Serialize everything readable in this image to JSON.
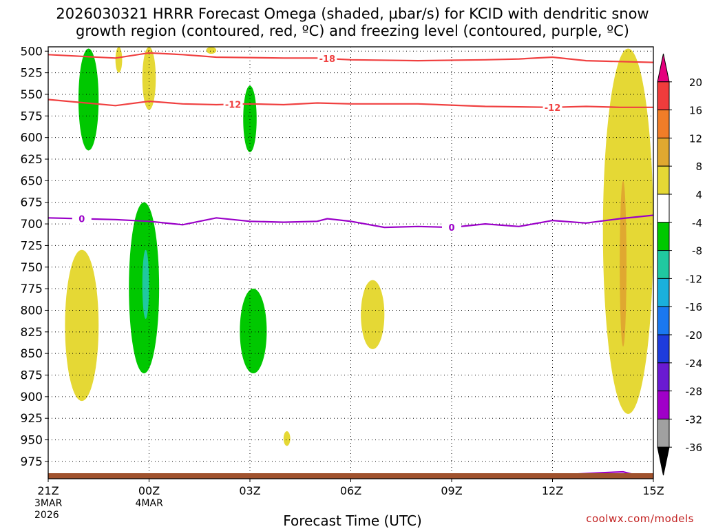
{
  "title": {
    "line1": "2026030321 HRRR Forecast Omega (shaded, µbar/s) for KCID with dendritic snow",
    "line2": "growth region (contoured, red, ºC) and freezing level (contoured, purple, ºC)"
  },
  "credit": "coolwx.com/models",
  "chart_data": {
    "type": "heatmap",
    "title": "2026030321 HRRR Forecast Omega (shaded, µbar/s) for KCID with dendritic snow growth region (contoured, red, ºC) and freezing level (contoured, purple, ºC)",
    "xlabel": "Forecast Time (UTC)",
    "ylabel": "",
    "x_range_hours": [
      0,
      18
    ],
    "y_range_hpa": [
      495,
      995
    ],
    "y_ticks": [
      "500",
      "525",
      "550",
      "575",
      "600",
      "625",
      "650",
      "675",
      "700",
      "725",
      "750",
      "775",
      "800",
      "825",
      "850",
      "875",
      "900",
      "925",
      "950",
      "975"
    ],
    "x_ticks": [
      {
        "hour": 0,
        "label": "21Z",
        "sub1": "3MAR",
        "sub2": "2026"
      },
      {
        "hour": 3,
        "label": "00Z",
        "sub1": "4MAR",
        "sub2": ""
      },
      {
        "hour": 6,
        "label": "03Z",
        "sub1": "",
        "sub2": ""
      },
      {
        "hour": 9,
        "label": "06Z",
        "sub1": "",
        "sub2": ""
      },
      {
        "hour": 12,
        "label": "09Z",
        "sub1": "",
        "sub2": ""
      },
      {
        "hour": 15,
        "label": "12Z",
        "sub1": "",
        "sub2": ""
      },
      {
        "hour": 18,
        "label": "15Z",
        "sub1": "",
        "sub2": ""
      }
    ],
    "colorbar": {
      "labels": [
        "20",
        "16",
        "12",
        "8",
        "4",
        "-4",
        "-8",
        "-12",
        "-16",
        "-20",
        "-24",
        "-28",
        "-32",
        "-36"
      ],
      "colors": [
        "#e5007e",
        "#f03c3c",
        "#f07d28",
        "#e0a830",
        "#e5d835",
        "#ffffff",
        "#00c800",
        "#20c8a0",
        "#1ab0dc",
        "#1a78f0",
        "#1e3cdc",
        "#6a1ad2",
        "#a000c8",
        "#a0a0a0",
        "#000000"
      ]
    },
    "shaded_regions": [
      {
        "name": "green-left-upper",
        "level": "-8 to -4",
        "hours": [
          0.9,
          1.5
        ],
        "hpa": [
          497,
          615
        ]
      },
      {
        "name": "yellow-top-small",
        "level": "4 to 8",
        "hours": [
          2.0,
          2.2
        ],
        "hpa": [
          495,
          525
        ]
      },
      {
        "name": "yellow-upper-00z",
        "level": "4 to 8",
        "hours": [
          2.8,
          3.2
        ],
        "hpa": [
          495,
          568
        ]
      },
      {
        "name": "yellow-top-right",
        "level": "4 to 8",
        "hours": [
          4.7,
          5.0
        ],
        "hpa": [
          495,
          503
        ]
      },
      {
        "name": "green-03z-upper",
        "level": "-8 to -4",
        "hours": [
          5.8,
          6.2
        ],
        "hpa": [
          540,
          617
        ]
      },
      {
        "name": "yellow-left-lower",
        "level": "4 to 8",
        "hours": [
          0.5,
          1.5
        ],
        "hpa": [
          730,
          905
        ]
      },
      {
        "name": "green-01z",
        "level": "-8 to -4",
        "hours": [
          2.4,
          3.3
        ],
        "hpa": [
          675,
          873
        ]
      },
      {
        "name": "teal-01z",
        "level": "-12 to -8",
        "hours": [
          2.8,
          3.0
        ],
        "hpa": [
          730,
          810
        ]
      },
      {
        "name": "green-03z-lower",
        "level": "-8 to -4",
        "hours": [
          5.7,
          6.5
        ],
        "hpa": [
          775,
          873
        ]
      },
      {
        "name": "yellow-05z",
        "level": "4 to 8",
        "hours": [
          9.3,
          10.0
        ],
        "hpa": [
          765,
          845
        ]
      },
      {
        "name": "yellow-small-low",
        "level": "4 to 8",
        "hours": [
          7.0,
          7.2
        ],
        "hpa": [
          940,
          957
        ]
      },
      {
        "name": "yellow-right-edge",
        "level": "4 to 8",
        "hours": [
          16.5,
          18.0
        ],
        "hpa": [
          497,
          920
        ]
      },
      {
        "name": "orange-right-core",
        "level": "8 to 12",
        "hours": [
          17.0,
          17.2
        ],
        "hpa": [
          650,
          842
        ]
      }
    ],
    "contours": [
      {
        "name": "red -18",
        "color": "#f04040",
        "label": "-18",
        "points": [
          [
            0,
            504
          ],
          [
            1,
            506
          ],
          [
            2,
            508
          ],
          [
            3,
            502
          ],
          [
            4,
            504
          ],
          [
            5,
            507
          ],
          [
            7,
            508
          ],
          [
            8,
            508
          ],
          [
            9,
            510
          ],
          [
            11,
            511
          ],
          [
            13,
            510
          ],
          [
            14,
            509
          ],
          [
            15,
            507
          ],
          [
            16,
            511
          ],
          [
            18,
            513
          ]
        ]
      },
      {
        "name": "red -12",
        "color": "#f04040",
        "label": "-12",
        "points": [
          [
            0,
            556
          ],
          [
            2,
            563
          ],
          [
            3,
            558
          ],
          [
            4,
            561
          ],
          [
            5,
            562
          ],
          [
            6,
            561
          ],
          [
            7,
            562
          ],
          [
            8,
            560
          ],
          [
            9,
            561
          ],
          [
            11,
            561
          ],
          [
            13,
            564
          ],
          [
            15,
            565
          ],
          [
            16,
            564
          ],
          [
            17,
            565
          ],
          [
            18,
            565
          ]
        ]
      },
      {
        "name": "purple 0",
        "color": "#9a00c8",
        "label": "0",
        "points": [
          [
            0,
            693
          ],
          [
            1,
            694
          ],
          [
            2,
            695
          ],
          [
            3,
            697
          ],
          [
            4,
            701
          ],
          [
            5,
            693
          ],
          [
            6,
            697
          ],
          [
            7,
            698
          ],
          [
            8,
            697
          ],
          [
            8.3,
            694
          ],
          [
            9,
            697
          ],
          [
            10,
            704
          ],
          [
            11,
            703
          ],
          [
            12,
            704
          ],
          [
            13,
            700
          ],
          [
            14,
            703
          ],
          [
            15,
            696
          ],
          [
            16,
            699
          ],
          [
            17,
            694
          ],
          [
            18,
            690
          ]
        ]
      }
    ],
    "surface_contour": {
      "name": "purple 0 near surface",
      "color": "#9a00c8",
      "points": [
        [
          14.2,
          992
        ],
        [
          15.5,
          990
        ],
        [
          16.5,
          988
        ],
        [
          17.1,
          987
        ],
        [
          17.3,
          989
        ],
        [
          17.1,
          992
        ]
      ]
    }
  },
  "label_font_size": 17
}
